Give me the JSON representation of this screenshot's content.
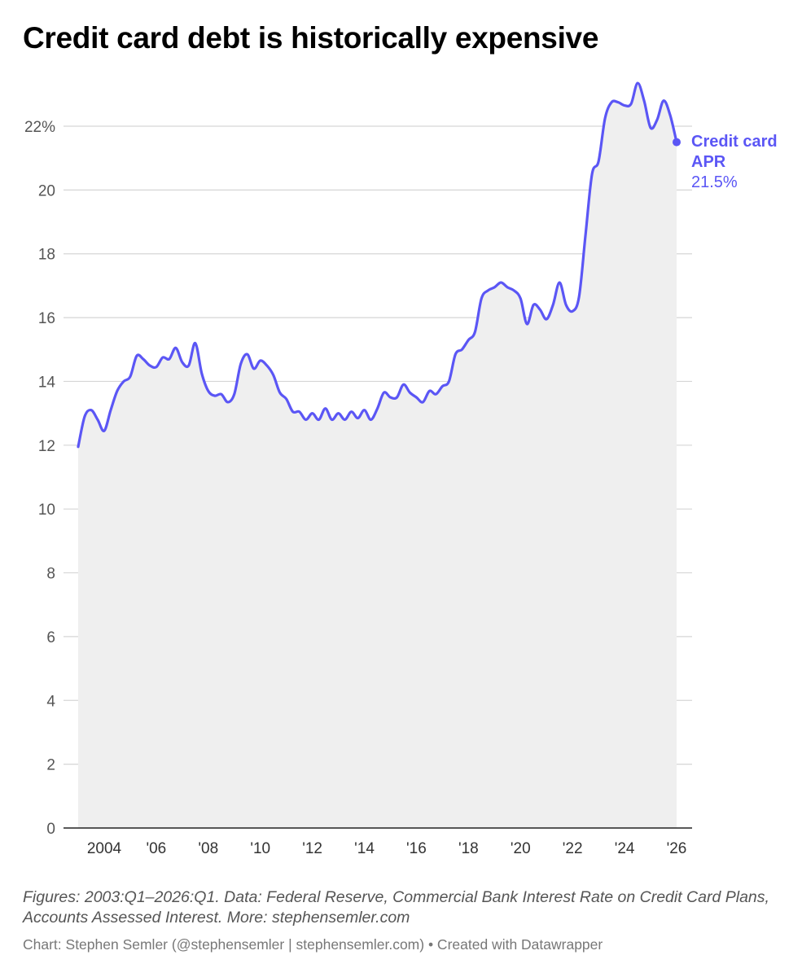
{
  "title": "Credit card debt is historically expensive",
  "notes": "Figures: 2003:Q1–2026:Q1. Data: Federal Reserve, Commercial Bank Interest Rate on Credit Card Plans, Accounts Assessed Interest. More: stephensemler.com",
  "byline": "Chart: Stephen Semler (@stephensemler | stephensemler.com) • Created with Datawrapper",
  "chart_data": {
    "type": "area",
    "title": "Credit card debt is historically expensive",
    "xlabel": "",
    "ylabel": "",
    "ylim": [
      0,
      22
    ],
    "yticks": [
      0,
      2,
      4,
      6,
      8,
      10,
      12,
      14,
      16,
      18,
      20,
      22
    ],
    "ytick_labels": [
      "0",
      "2",
      "4",
      "6",
      "8",
      "10",
      "12",
      "14",
      "16",
      "18",
      "20",
      "22%"
    ],
    "xlim": [
      2003.0,
      2026.3
    ],
    "xticks": [
      2004,
      2006,
      2008,
      2010,
      2012,
      2014,
      2016,
      2018,
      2020,
      2022,
      2024,
      2026
    ],
    "xtick_labels": [
      "2004",
      "'06",
      "'08",
      "'10",
      "'12",
      "'14",
      "'16",
      "'18",
      "'20",
      "'22",
      "'24",
      "'26"
    ],
    "grid": true,
    "line_color": "#5b56f5",
    "area_color": "#efefef",
    "end_label": {
      "name": "Credit card APR",
      "value": "21.5%"
    },
    "series": [
      {
        "name": "Credit card APR",
        "x": [
          2003.0,
          2003.25,
          2003.5,
          2003.75,
          2004.0,
          2004.25,
          2004.5,
          2004.75,
          2005.0,
          2005.25,
          2005.5,
          2005.75,
          2006.0,
          2006.25,
          2006.5,
          2006.75,
          2007.0,
          2007.25,
          2007.5,
          2007.75,
          2008.0,
          2008.25,
          2008.5,
          2008.75,
          2009.0,
          2009.25,
          2009.5,
          2009.75,
          2010.0,
          2010.25,
          2010.5,
          2010.75,
          2011.0,
          2011.25,
          2011.5,
          2011.75,
          2012.0,
          2012.25,
          2012.5,
          2012.75,
          2013.0,
          2013.25,
          2013.5,
          2013.75,
          2014.0,
          2014.25,
          2014.5,
          2014.75,
          2015.0,
          2015.25,
          2015.5,
          2015.75,
          2016.0,
          2016.25,
          2016.5,
          2016.75,
          2017.0,
          2017.25,
          2017.5,
          2017.75,
          2018.0,
          2018.25,
          2018.5,
          2018.75,
          2019.0,
          2019.25,
          2019.5,
          2019.75,
          2020.0,
          2020.25,
          2020.5,
          2020.75,
          2021.0,
          2021.25,
          2021.5,
          2021.75,
          2022.0,
          2022.25,
          2022.5,
          2022.75,
          2023.0,
          2023.25,
          2023.5,
          2023.75,
          2024.0,
          2024.25,
          2024.5,
          2024.75,
          2025.0,
          2025.25,
          2025.5,
          2025.75,
          2026.0
        ],
        "values": [
          11.95,
          12.9,
          13.1,
          12.8,
          12.45,
          13.1,
          13.7,
          14.0,
          14.15,
          14.8,
          14.7,
          14.5,
          14.45,
          14.75,
          14.7,
          15.05,
          14.6,
          14.5,
          15.2,
          14.25,
          13.7,
          13.55,
          13.6,
          13.35,
          13.6,
          14.55,
          14.85,
          14.4,
          14.65,
          14.5,
          14.2,
          13.65,
          13.45,
          13.05,
          13.05,
          12.8,
          13.0,
          12.8,
          13.15,
          12.8,
          13.0,
          12.8,
          13.05,
          12.85,
          13.1,
          12.8,
          13.15,
          13.65,
          13.5,
          13.5,
          13.9,
          13.65,
          13.5,
          13.35,
          13.7,
          13.6,
          13.85,
          14.0,
          14.85,
          15.0,
          15.3,
          15.55,
          16.6,
          16.85,
          16.95,
          17.1,
          16.95,
          16.85,
          16.6,
          15.8,
          16.4,
          16.25,
          15.95,
          16.4,
          17.1,
          16.4,
          16.2,
          16.65,
          18.6,
          20.5,
          20.9,
          22.25,
          22.75,
          22.75,
          22.65,
          22.7,
          23.35,
          22.8,
          21.95,
          22.2,
          22.8,
          22.35,
          21.5
        ]
      }
    ]
  }
}
